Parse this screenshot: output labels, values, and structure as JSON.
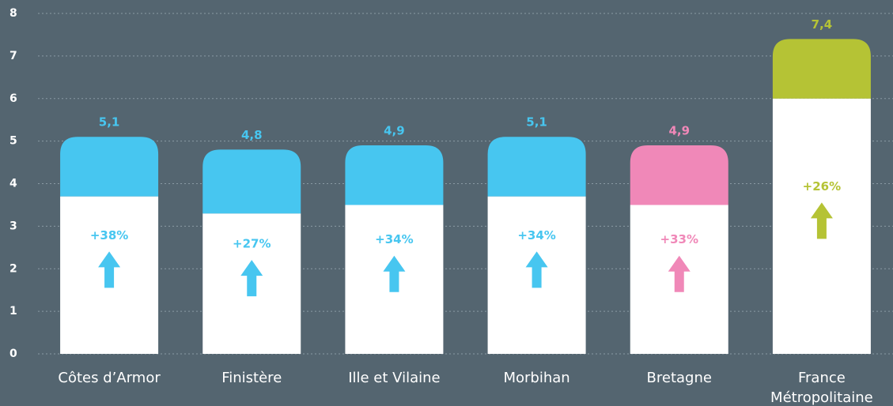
{
  "chart_data": {
    "type": "stacked_bar",
    "categories": [
      "Côtes d’Armor",
      "Finistère",
      "Ille et Vilaine",
      "Morbihan",
      "Bretagne",
      "France Métropolitaine"
    ],
    "series": [
      {
        "color": "#ffffff",
        "values": [
          3.7,
          3.3,
          3.5,
          3.7,
          3.5,
          6.0
        ]
      },
      {
        "colors": [
          "#47c6f0",
          "#47c6f0",
          "#47c6f0",
          "#47c6f0",
          "#f088b8",
          "#b5c335"
        ],
        "values": [
          1.4,
          1.5,
          1.4,
          1.4,
          1.4,
          1.4
        ]
      }
    ],
    "totals": [
      5.1,
      4.8,
      4.9,
      5.1,
      4.9,
      7.4
    ],
    "total_labels": [
      "5,1",
      "4,8",
      "4,9",
      "5,1",
      "4,9",
      "7,4"
    ],
    "changes": [
      38,
      27,
      34,
      34,
      33,
      26
    ],
    "change_labels": [
      "+38%",
      "+27%",
      "+34%",
      "+34%",
      "+33%",
      "+26%"
    ],
    "ylim": [
      0,
      8
    ],
    "yticks": [
      0,
      1,
      2,
      3,
      4,
      5,
      6,
      7,
      8
    ],
    "grid": true
  }
}
